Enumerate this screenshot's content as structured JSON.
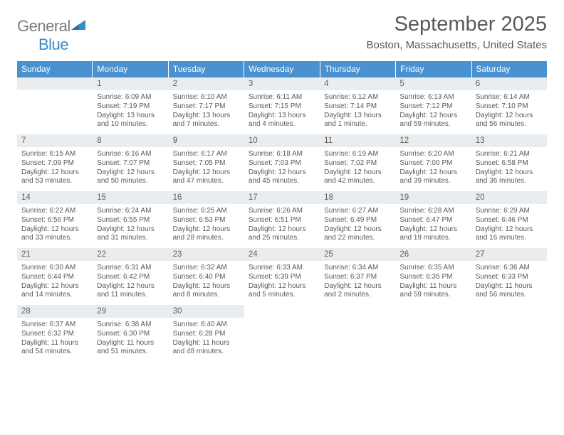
{
  "logo": {
    "word1": "General",
    "word2": "Blue"
  },
  "title": "September 2025",
  "subtitle": "Boston, Massachusetts, United States",
  "colors": {
    "header_bg": "#4a91d1",
    "header_text": "#ffffff",
    "daybar_bg": "#e9edf0",
    "text": "#5a5a5a",
    "logo_gray": "#7c7c7c",
    "logo_blue": "#3b8bc9"
  },
  "week_labels": [
    "Sunday",
    "Monday",
    "Tuesday",
    "Wednesday",
    "Thursday",
    "Friday",
    "Saturday"
  ],
  "weeks": [
    [
      {
        "n": "",
        "lines": []
      },
      {
        "n": "1",
        "lines": [
          "Sunrise: 6:09 AM",
          "Sunset: 7:19 PM",
          "Daylight: 13 hours",
          "and 10 minutes."
        ]
      },
      {
        "n": "2",
        "lines": [
          "Sunrise: 6:10 AM",
          "Sunset: 7:17 PM",
          "Daylight: 13 hours",
          "and 7 minutes."
        ]
      },
      {
        "n": "3",
        "lines": [
          "Sunrise: 6:11 AM",
          "Sunset: 7:15 PM",
          "Daylight: 13 hours",
          "and 4 minutes."
        ]
      },
      {
        "n": "4",
        "lines": [
          "Sunrise: 6:12 AM",
          "Sunset: 7:14 PM",
          "Daylight: 13 hours",
          "and 1 minute."
        ]
      },
      {
        "n": "5",
        "lines": [
          "Sunrise: 6:13 AM",
          "Sunset: 7:12 PM",
          "Daylight: 12 hours",
          "and 59 minutes."
        ]
      },
      {
        "n": "6",
        "lines": [
          "Sunrise: 6:14 AM",
          "Sunset: 7:10 PM",
          "Daylight: 12 hours",
          "and 56 minutes."
        ]
      }
    ],
    [
      {
        "n": "7",
        "lines": [
          "Sunrise: 6:15 AM",
          "Sunset: 7:09 PM",
          "Daylight: 12 hours",
          "and 53 minutes."
        ]
      },
      {
        "n": "8",
        "lines": [
          "Sunrise: 6:16 AM",
          "Sunset: 7:07 PM",
          "Daylight: 12 hours",
          "and 50 minutes."
        ]
      },
      {
        "n": "9",
        "lines": [
          "Sunrise: 6:17 AM",
          "Sunset: 7:05 PM",
          "Daylight: 12 hours",
          "and 47 minutes."
        ]
      },
      {
        "n": "10",
        "lines": [
          "Sunrise: 6:18 AM",
          "Sunset: 7:03 PM",
          "Daylight: 12 hours",
          "and 45 minutes."
        ]
      },
      {
        "n": "11",
        "lines": [
          "Sunrise: 6:19 AM",
          "Sunset: 7:02 PM",
          "Daylight: 12 hours",
          "and 42 minutes."
        ]
      },
      {
        "n": "12",
        "lines": [
          "Sunrise: 6:20 AM",
          "Sunset: 7:00 PM",
          "Daylight: 12 hours",
          "and 39 minutes."
        ]
      },
      {
        "n": "13",
        "lines": [
          "Sunrise: 6:21 AM",
          "Sunset: 6:58 PM",
          "Daylight: 12 hours",
          "and 36 minutes."
        ]
      }
    ],
    [
      {
        "n": "14",
        "lines": [
          "Sunrise: 6:22 AM",
          "Sunset: 6:56 PM",
          "Daylight: 12 hours",
          "and 33 minutes."
        ]
      },
      {
        "n": "15",
        "lines": [
          "Sunrise: 6:24 AM",
          "Sunset: 6:55 PM",
          "Daylight: 12 hours",
          "and 31 minutes."
        ]
      },
      {
        "n": "16",
        "lines": [
          "Sunrise: 6:25 AM",
          "Sunset: 6:53 PM",
          "Daylight: 12 hours",
          "and 28 minutes."
        ]
      },
      {
        "n": "17",
        "lines": [
          "Sunrise: 6:26 AM",
          "Sunset: 6:51 PM",
          "Daylight: 12 hours",
          "and 25 minutes."
        ]
      },
      {
        "n": "18",
        "lines": [
          "Sunrise: 6:27 AM",
          "Sunset: 6:49 PM",
          "Daylight: 12 hours",
          "and 22 minutes."
        ]
      },
      {
        "n": "19",
        "lines": [
          "Sunrise: 6:28 AM",
          "Sunset: 6:47 PM",
          "Daylight: 12 hours",
          "and 19 minutes."
        ]
      },
      {
        "n": "20",
        "lines": [
          "Sunrise: 6:29 AM",
          "Sunset: 6:46 PM",
          "Daylight: 12 hours",
          "and 16 minutes."
        ]
      }
    ],
    [
      {
        "n": "21",
        "lines": [
          "Sunrise: 6:30 AM",
          "Sunset: 6:44 PM",
          "Daylight: 12 hours",
          "and 14 minutes."
        ]
      },
      {
        "n": "22",
        "lines": [
          "Sunrise: 6:31 AM",
          "Sunset: 6:42 PM",
          "Daylight: 12 hours",
          "and 11 minutes."
        ]
      },
      {
        "n": "23",
        "lines": [
          "Sunrise: 6:32 AM",
          "Sunset: 6:40 PM",
          "Daylight: 12 hours",
          "and 8 minutes."
        ]
      },
      {
        "n": "24",
        "lines": [
          "Sunrise: 6:33 AM",
          "Sunset: 6:39 PM",
          "Daylight: 12 hours",
          "and 5 minutes."
        ]
      },
      {
        "n": "25",
        "lines": [
          "Sunrise: 6:34 AM",
          "Sunset: 6:37 PM",
          "Daylight: 12 hours",
          "and 2 minutes."
        ]
      },
      {
        "n": "26",
        "lines": [
          "Sunrise: 6:35 AM",
          "Sunset: 6:35 PM",
          "Daylight: 11 hours",
          "and 59 minutes."
        ]
      },
      {
        "n": "27",
        "lines": [
          "Sunrise: 6:36 AM",
          "Sunset: 6:33 PM",
          "Daylight: 11 hours",
          "and 56 minutes."
        ]
      }
    ],
    [
      {
        "n": "28",
        "lines": [
          "Sunrise: 6:37 AM",
          "Sunset: 6:32 PM",
          "Daylight: 11 hours",
          "and 54 minutes."
        ]
      },
      {
        "n": "29",
        "lines": [
          "Sunrise: 6:38 AM",
          "Sunset: 6:30 PM",
          "Daylight: 11 hours",
          "and 51 minutes."
        ]
      },
      {
        "n": "30",
        "lines": [
          "Sunrise: 6:40 AM",
          "Sunset: 6:28 PM",
          "Daylight: 11 hours",
          "and 48 minutes."
        ]
      },
      {
        "n": "",
        "lines": []
      },
      {
        "n": "",
        "lines": []
      },
      {
        "n": "",
        "lines": []
      },
      {
        "n": "",
        "lines": []
      }
    ]
  ]
}
